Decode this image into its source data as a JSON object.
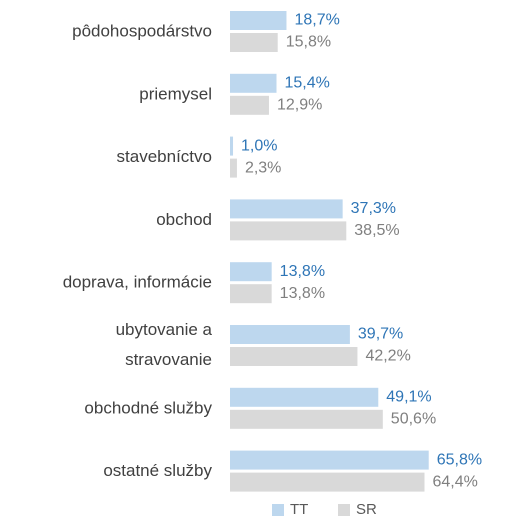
{
  "chart_data": {
    "type": "bar",
    "orientation": "horizontal",
    "categories": [
      "pôdohospodárstvo",
      "priemysel",
      "stavebníctvo",
      "obchod",
      "doprava, informácie",
      "ubytovanie a\nstravovanie",
      "obchodné služby",
      "ostatné služby"
    ],
    "series": [
      {
        "name": "TT",
        "color": "#bdd7ee",
        "label_color": "#2e75b6",
        "values": [
          18.7,
          15.4,
          1.0,
          37.3,
          13.8,
          39.7,
          49.1,
          65.8
        ],
        "value_labels": [
          "18,7%",
          "15,4%",
          "1,0%",
          "37,3%",
          "13,8%",
          "39,7%",
          "49,1%",
          "65,8%"
        ]
      },
      {
        "name": "SR",
        "color": "#d9d9d9",
        "label_color": "#7f7f7f",
        "values": [
          15.8,
          12.9,
          2.3,
          38.5,
          13.8,
          42.2,
          50.6,
          64.4
        ],
        "value_labels": [
          "15,8%",
          "12,9%",
          "2,3%",
          "38,5%",
          "13,8%",
          "42,2%",
          "50,6%",
          "64,4%"
        ]
      }
    ],
    "legend": "bottom"
  }
}
